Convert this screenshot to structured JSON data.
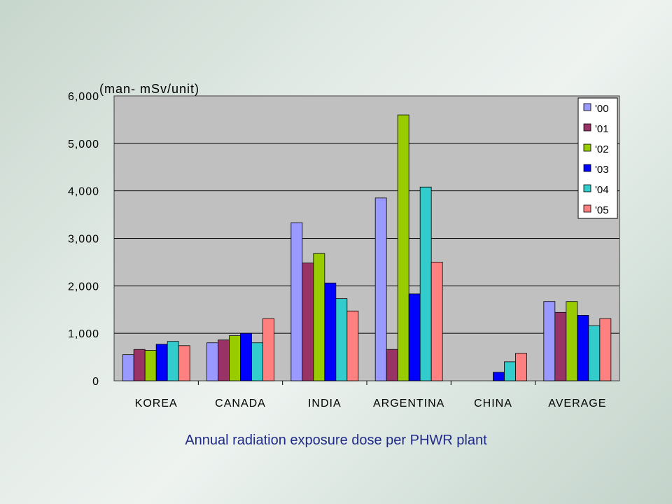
{
  "caption": "Annual radiation exposure dose per PHWR plant",
  "chart_data": {
    "type": "bar",
    "unit_label": "(man- mSv/unit)",
    "categories": [
      "KOREA",
      "CANADA",
      "INDIA",
      "ARGENTINA",
      "CHINA",
      "AVERAGE"
    ],
    "ylim": [
      0,
      6000
    ],
    "yticks": [
      0,
      1000,
      2000,
      3000,
      4000,
      5000,
      6000
    ],
    "ytick_labels": [
      "0",
      "1,000",
      "2,000",
      "3,000",
      "4,000",
      "5,000",
      "6,000"
    ],
    "grid": true,
    "legend_position": "top-right",
    "series": [
      {
        "name": "'00",
        "color": "#9999ff",
        "values": [
          550,
          800,
          3330,
          3850,
          0,
          1670
        ]
      },
      {
        "name": "'01",
        "color": "#993366",
        "values": [
          660,
          860,
          2480,
          660,
          0,
          1440
        ]
      },
      {
        "name": "'02",
        "color": "#99cc00",
        "values": [
          640,
          950,
          2680,
          5600,
          0,
          1670
        ]
      },
      {
        "name": "'03",
        "color": "#0000ff",
        "values": [
          770,
          1000,
          2060,
          1830,
          180,
          1380
        ]
      },
      {
        "name": "'04",
        "color": "#33cccc",
        "values": [
          830,
          800,
          1730,
          4080,
          400,
          1160
        ]
      },
      {
        "name": "'05",
        "color": "#ff8080",
        "values": [
          740,
          1310,
          1470,
          2500,
          580,
          1310
        ]
      }
    ]
  }
}
